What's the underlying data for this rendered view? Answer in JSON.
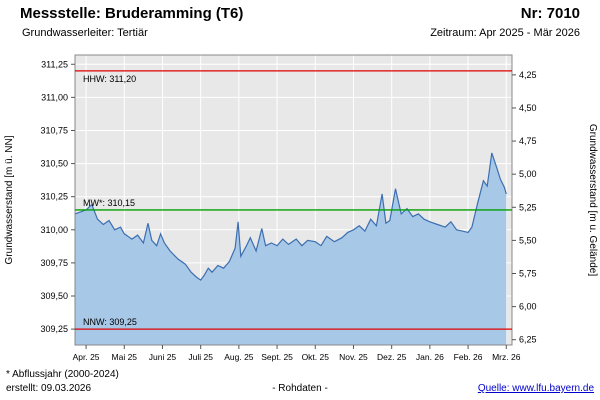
{
  "header": {
    "title": "Messstelle: Bruderamming (T6)",
    "number": "Nr: 7010",
    "aquifer": "Grundwasserleiter: Tertiär",
    "period": "Zeitraum: Apr 2025 - Mär 2026"
  },
  "footer": {
    "note": "* Abflussjahr (2000-2024)",
    "created": "erstellt: 09.03.2026",
    "center": "- Rohdaten -",
    "source": "Quelle: www.lfu.bayern.de"
  },
  "chart_data": {
    "type": "area",
    "title": "",
    "ylabel_left": "Grundwasserstand [m ü. NN]",
    "ylabel_right": "Grundwasserstand [m u. Gelände]",
    "xlim": [
      -0.29,
      11.15
    ],
    "ylim": [
      309.13,
      311.32
    ],
    "ground_offset": 315.42,
    "grid": true,
    "colors": {
      "plot_bg": "#e8e8e8",
      "grid": "#ffffff",
      "border": "#888888",
      "tick": "#555555",
      "area_fill": "#a8c8e8",
      "line": "#3c6fb0",
      "hhw": "#e00000",
      "mw": "#00a000",
      "nnw": "#e00000",
      "link": "#0000cc"
    },
    "x_ticks": [
      {
        "label": "Apr. 25",
        "value": 0
      },
      {
        "label": "Mai 25",
        "value": 1
      },
      {
        "label": "Juni 25",
        "value": 2
      },
      {
        "label": "Juli 25",
        "value": 3
      },
      {
        "label": "Aug. 25",
        "value": 4
      },
      {
        "label": "Sept. 25",
        "value": 5
      },
      {
        "label": "Okt. 25",
        "value": 6
      },
      {
        "label": "Nov. 25",
        "value": 7
      },
      {
        "label": "Dez. 25",
        "value": 8
      },
      {
        "label": "Jan. 26",
        "value": 9
      },
      {
        "label": "Feb. 26",
        "value": 10
      },
      {
        "label": "Mrz. 26",
        "value": 11
      }
    ],
    "y_left_ticks": [
      {
        "label": "309,25",
        "value": 309.25
      },
      {
        "label": "309,50",
        "value": 309.5
      },
      {
        "label": "309,75",
        "value": 309.75
      },
      {
        "label": "310,00",
        "value": 310.0
      },
      {
        "label": "310,25",
        "value": 310.25
      },
      {
        "label": "310,50",
        "value": 310.5
      },
      {
        "label": "310,75",
        "value": 310.75
      },
      {
        "label": "311,00",
        "value": 311.0
      },
      {
        "label": "311,25",
        "value": 311.25
      }
    ],
    "y_right_ticks": [
      {
        "label": "4,25",
        "value": 4.25
      },
      {
        "label": "4,50",
        "value": 4.5
      },
      {
        "label": "4,75",
        "value": 4.75
      },
      {
        "label": "5,00",
        "value": 5.0
      },
      {
        "label": "5,25",
        "value": 5.25
      },
      {
        "label": "5,50",
        "value": 5.5
      },
      {
        "label": "5,75",
        "value": 5.75
      },
      {
        "label": "6,00",
        "value": 6.0
      },
      {
        "label": "6,25",
        "value": 6.25
      }
    ],
    "ref_lines": [
      {
        "name": "HHW",
        "label": "HHW: 311,20",
        "value": 311.2,
        "color": "#e00000",
        "label_pos": "below"
      },
      {
        "name": "MW",
        "label": "MW*: 310,15",
        "value": 310.15,
        "color": "#00a000",
        "label_pos": "above"
      },
      {
        "name": "NNW",
        "label": "NNW: 309,25",
        "value": 309.25,
        "color": "#e00000",
        "label_pos": "above"
      }
    ],
    "series": [
      {
        "name": "Grundwasserstand Rohdaten",
        "points": [
          [
            -0.29,
            310.12
          ],
          [
            0,
            310.15
          ],
          [
            0.15,
            310.19
          ],
          [
            0.3,
            310.08
          ],
          [
            0.45,
            310.04
          ],
          [
            0.6,
            310.07
          ],
          [
            0.75,
            310.0
          ],
          [
            0.9,
            310.02
          ],
          [
            1,
            309.97
          ],
          [
            1.2,
            309.93
          ],
          [
            1.35,
            309.96
          ],
          [
            1.5,
            309.9
          ],
          [
            1.62,
            310.05
          ],
          [
            1.72,
            309.92
          ],
          [
            1.85,
            309.88
          ],
          [
            1.95,
            309.97
          ],
          [
            2.05,
            309.9
          ],
          [
            2.2,
            309.84
          ],
          [
            2.4,
            309.78
          ],
          [
            2.6,
            309.74
          ],
          [
            2.75,
            309.68
          ],
          [
            2.9,
            309.64
          ],
          [
            3,
            309.62
          ],
          [
            3.1,
            309.66
          ],
          [
            3.2,
            309.71
          ],
          [
            3.3,
            309.68
          ],
          [
            3.45,
            309.73
          ],
          [
            3.6,
            309.71
          ],
          [
            3.75,
            309.76
          ],
          [
            3.9,
            309.86
          ],
          [
            3.98,
            310.06
          ],
          [
            4.05,
            309.8
          ],
          [
            4.2,
            309.88
          ],
          [
            4.3,
            309.94
          ],
          [
            4.45,
            309.84
          ],
          [
            4.6,
            310.01
          ],
          [
            4.7,
            309.88
          ],
          [
            4.85,
            309.9
          ],
          [
            5,
            309.88
          ],
          [
            5.15,
            309.93
          ],
          [
            5.3,
            309.89
          ],
          [
            5.5,
            309.93
          ],
          [
            5.65,
            309.88
          ],
          [
            5.8,
            309.92
          ],
          [
            6,
            309.91
          ],
          [
            6.15,
            309.88
          ],
          [
            6.3,
            309.95
          ],
          [
            6.5,
            309.91
          ],
          [
            6.7,
            309.94
          ],
          [
            6.85,
            309.98
          ],
          [
            7,
            310.0
          ],
          [
            7.15,
            310.03
          ],
          [
            7.3,
            309.99
          ],
          [
            7.45,
            310.08
          ],
          [
            7.6,
            310.03
          ],
          [
            7.75,
            310.27
          ],
          [
            7.85,
            310.05
          ],
          [
            7.95,
            310.07
          ],
          [
            8.1,
            310.31
          ],
          [
            8.25,
            310.12
          ],
          [
            8.4,
            310.16
          ],
          [
            8.55,
            310.1
          ],
          [
            8.7,
            310.12
          ],
          [
            8.85,
            310.08
          ],
          [
            9,
            310.06
          ],
          [
            9.2,
            310.04
          ],
          [
            9.4,
            310.02
          ],
          [
            9.55,
            310.06
          ],
          [
            9.7,
            310.0
          ],
          [
            9.85,
            309.99
          ],
          [
            10,
            309.98
          ],
          [
            10.1,
            310.02
          ],
          [
            10.25,
            310.2
          ],
          [
            10.4,
            310.37
          ],
          [
            10.5,
            310.33
          ],
          [
            10.62,
            310.58
          ],
          [
            10.75,
            310.47
          ],
          [
            10.85,
            310.38
          ],
          [
            10.95,
            310.32
          ],
          [
            11,
            310.27
          ]
        ]
      }
    ]
  }
}
